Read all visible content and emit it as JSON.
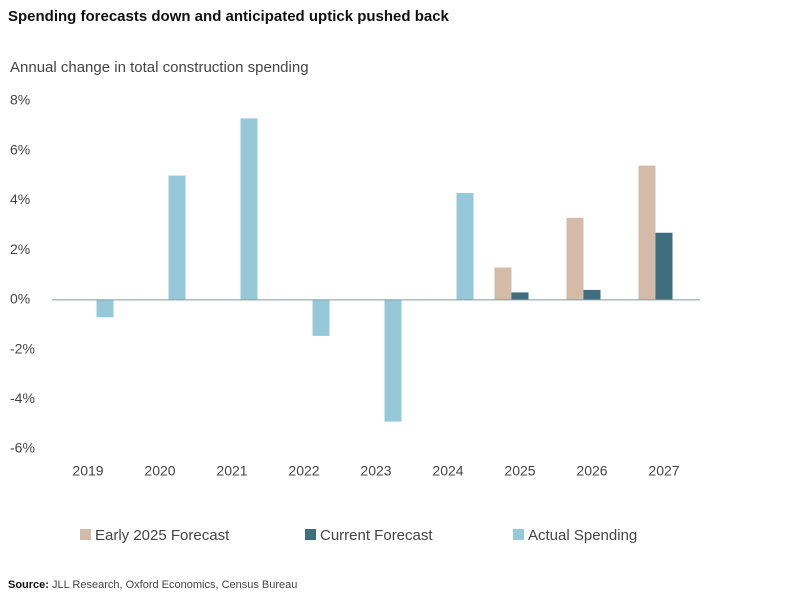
{
  "chart_data": {
    "type": "bar",
    "title": "Spending forecasts down and anticipated uptick pushed back",
    "subtitle": "Annual change in total construction spending",
    "categories": [
      "2019",
      "2020",
      "2021",
      "2022",
      "2023",
      "2024",
      "2025",
      "2026",
      "2027"
    ],
    "series": [
      {
        "name": "Early 2025 Forecast",
        "color": "#d3bba8",
        "values": [
          null,
          null,
          null,
          null,
          null,
          null,
          1.3,
          3.3,
          5.4
        ]
      },
      {
        "name": "Current Forecast",
        "color": "#3f6e7f",
        "values": [
          null,
          null,
          null,
          null,
          null,
          null,
          0.3,
          0.4,
          2.7
        ]
      },
      {
        "name": "Actual Spending",
        "color": "#95c8d8",
        "values": [
          -0.7,
          5.0,
          7.3,
          -1.45,
          -4.9,
          4.3,
          null,
          null,
          null
        ]
      }
    ],
    "ylim": [
      -6,
      8
    ],
    "yticks": [
      {
        "value": -6,
        "label": "-6%"
      },
      {
        "value": -4,
        "label": "-4%"
      },
      {
        "value": -2,
        "label": "-2%"
      },
      {
        "value": 0,
        "label": "0%"
      },
      {
        "value": 2,
        "label": "2%"
      },
      {
        "value": 4,
        "label": "4%"
      },
      {
        "value": 6,
        "label": "6%"
      },
      {
        "value": 8,
        "label": "8%"
      }
    ],
    "grid": false,
    "legend": "bottom",
    "source_label": "Source:",
    "source": "JLL Research, Oxford Economics, Census Bureau"
  }
}
